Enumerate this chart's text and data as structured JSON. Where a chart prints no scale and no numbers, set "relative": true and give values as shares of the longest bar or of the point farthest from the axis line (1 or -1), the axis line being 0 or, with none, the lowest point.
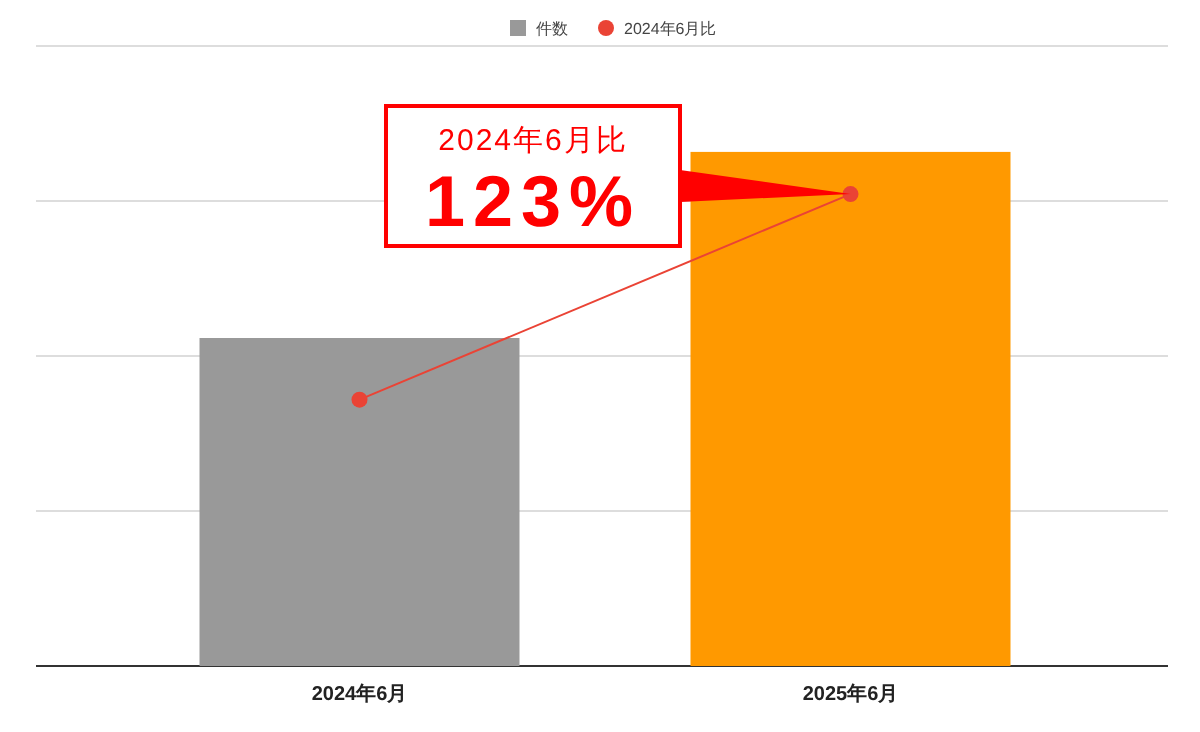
{
  "chart_data": {
    "type": "bar",
    "relative": true,
    "categories": [
      "2024年6月",
      "2025年6月"
    ],
    "series": [
      {
        "name": "件数",
        "colors": [
          "#999999",
          "#ff9900"
        ],
        "values": [
          0.638,
          1
        ]
      },
      {
        "name": "2024年6月比",
        "type": "line",
        "color": "#ea4335",
        "marker": "circle",
        "values": [
          0.518,
          0.918
        ]
      }
    ],
    "annotations": [
      "2024年6月比",
      "123%"
    ],
    "grid": "y",
    "legend": "top"
  }
}
